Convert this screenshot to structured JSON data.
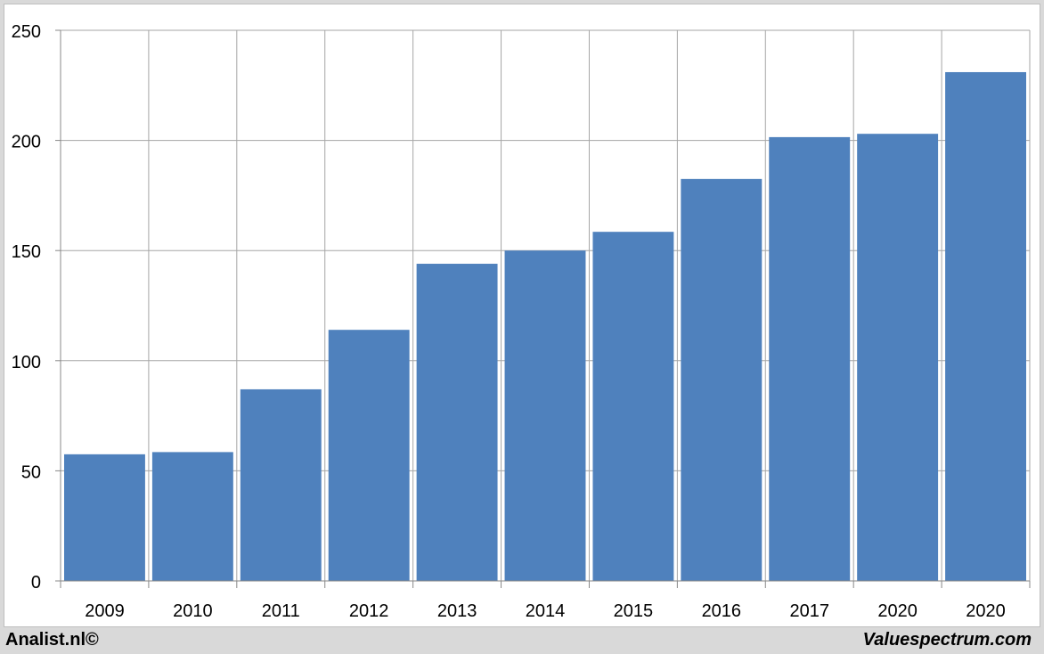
{
  "chart_data": {
    "type": "bar",
    "categories": [
      "2009",
      "2010",
      "2011",
      "2012",
      "2013",
      "2014",
      "2015",
      "2016",
      "2017",
      "2020",
      "2020"
    ],
    "values": [
      57.5,
      58.5,
      87,
      114,
      144,
      150,
      158.5,
      182.5,
      201.5,
      203,
      231
    ],
    "ylim": [
      0,
      250
    ],
    "yticks": [
      0,
      50,
      100,
      150,
      200,
      250
    ],
    "grid": true,
    "bar_color": "#4f81bd",
    "grid_color": "#a6a6a6"
  },
  "footer": {
    "left": "Analist.nl©",
    "right": "Valuespectrum.com"
  }
}
